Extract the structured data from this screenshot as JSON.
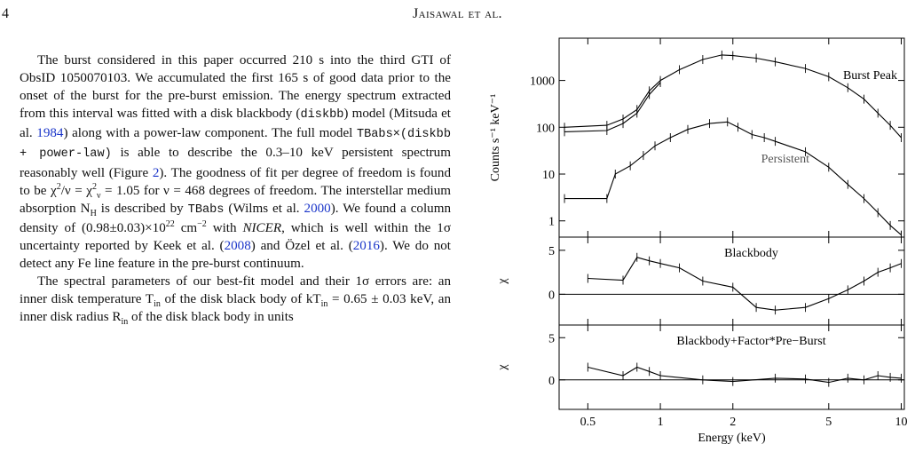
{
  "header": {
    "page_number": "4",
    "running_head": "Jaisawal et al."
  },
  "body": {
    "p1": [
      "The burst considered in this paper occurred 210 s into the third GTI of ObsID 1050070103. We accumulated the first 165 s of good data prior to the onset of the burst for the pre-burst emission. The energy spectrum extracted from this interval was fitted with a disk blackbody (",
      "diskbb",
      ") model (Mitsuda et al. ",
      "1984",
      ") along with a power-law component. The full model ",
      "TBabs×(diskbb + power-law)",
      " is able to describe the 0.3–10 keV persistent spectrum reasonably well (Figure ",
      "2",
      "). The goodness of fit per degree of freedom is found to be χ",
      "2",
      "/ν = χ",
      "2",
      "ν",
      " = 1.05 for ν = 468 degrees of freedom. The interstellar medium absorption N",
      "H",
      " is described by ",
      "TBabs",
      " (Wilms et al. ",
      "2000",
      "). We found a column density of (0.98±0.03)×10",
      "22",
      " cm",
      "−2",
      " with ",
      "NICER",
      ", which is well within the 1σ uncertainty reported by Keek et al. (",
      "2008",
      ") and Özel et al. (",
      "2016",
      "). We do not detect any Fe line feature in the pre-burst continuum."
    ],
    "p2": [
      "The spectral parameters of our best-fit model and their 1σ errors are: an inner disk temperature T",
      "in",
      " of the disk black body of kT",
      "in",
      " = 0.65 ± 0.03 keV, an inner disk radius R",
      "in",
      " of the disk black body in units"
    ]
  },
  "figure": {
    "chart_data": {
      "type": "line",
      "xlabel": "Energy (keV)",
      "x_scale": "log",
      "xlim": [
        0.38,
        10.3
      ],
      "x_ticks": [
        0.5,
        1,
        2,
        5,
        10
      ],
      "x_tick_labels": [
        "0.5",
        "1",
        "2",
        "5",
        "10"
      ],
      "panels": [
        {
          "ylabel": "Counts s⁻¹ keV⁻¹",
          "y_scale": "log",
          "ylim": [
            0.45,
            8000
          ],
          "y_ticks": [
            1,
            10,
            100,
            1000
          ],
          "y_tick_labels": [
            "1",
            "10",
            "100",
            "1000"
          ],
          "annotations": [
            "Burst Peak",
            "Persistent"
          ],
          "series": [
            {
              "points": [
                [
                  0.4,
                  100
                ],
                [
                  0.6,
                  110
                ],
                [
                  0.7,
                  150
                ],
                [
                  0.8,
                  240
                ],
                [
                  0.9,
                  600
                ],
                [
                  1.0,
                  1000
                ],
                [
                  1.2,
                  1700
                ],
                [
                  1.5,
                  2800
                ],
                [
                  1.8,
                  3500
                ],
                [
                  2.0,
                  3400
                ],
                [
                  2.5,
                  3000
                ],
                [
                  3.0,
                  2500
                ],
                [
                  4.0,
                  1800
                ],
                [
                  5.0,
                  1200
                ],
                [
                  6.0,
                  700
                ],
                [
                  7.0,
                  400
                ],
                [
                  8.0,
                  200
                ],
                [
                  9.0,
                  110
                ],
                [
                  10.0,
                  60
                ]
              ]
            },
            {
              "points": [
                [
                  0.4,
                  80
                ],
                [
                  0.6,
                  85
                ],
                [
                  0.7,
                  120
                ],
                [
                  0.8,
                  200
                ],
                [
                  0.9,
                  500
                ],
                [
                  1.0,
                  900
                ]
              ]
            },
            {
              "points": [
                [
                  0.4,
                  3
                ],
                [
                  0.6,
                  3
                ],
                [
                  0.65,
                  10
                ],
                [
                  0.75,
                  15
                ],
                [
                  0.85,
                  25
                ],
                [
                  0.95,
                  40
                ],
                [
                  1.1,
                  60
                ],
                [
                  1.3,
                  90
                ],
                [
                  1.6,
                  120
                ],
                [
                  1.9,
                  130
                ],
                [
                  2.1,
                  100
                ],
                [
                  2.4,
                  70
                ],
                [
                  2.7,
                  60
                ],
                [
                  3.0,
                  50
                ],
                [
                  4.0,
                  30
                ],
                [
                  5.0,
                  14
                ],
                [
                  6.0,
                  6
                ],
                [
                  7.0,
                  3
                ],
                [
                  8.0,
                  1.5
                ],
                [
                  9.0,
                  0.8
                ],
                [
                  10.0,
                  0.5
                ]
              ]
            }
          ]
        },
        {
          "ylabel": "χ",
          "ylim": [
            -3.5,
            6.5
          ],
          "y_ticks": [
            0,
            5
          ],
          "y_tick_labels": [
            "0",
            "5"
          ],
          "annotations": [
            "Blackbody"
          ],
          "series": [
            {
              "points": [
                [
                  0.5,
                  1.8
                ],
                [
                  0.7,
                  1.6
                ],
                [
                  0.8,
                  4.2
                ],
                [
                  0.9,
                  3.8
                ],
                [
                  1.0,
                  3.5
                ],
                [
                  1.2,
                  3.0
                ],
                [
                  1.5,
                  1.5
                ],
                [
                  2.0,
                  0.8
                ],
                [
                  2.5,
                  -1.5
                ],
                [
                  3.0,
                  -1.8
                ],
                [
                  4.0,
                  -1.5
                ],
                [
                  5.0,
                  -0.5
                ],
                [
                  6.0,
                  0.5
                ],
                [
                  7.0,
                  1.5
                ],
                [
                  8.0,
                  2.5
                ],
                [
                  9.0,
                  3.0
                ],
                [
                  10.0,
                  3.5
                ]
              ]
            }
          ]
        },
        {
          "ylabel": "χ",
          "ylim": [
            -3.5,
            6.5
          ],
          "y_ticks": [
            0,
            5
          ],
          "y_tick_labels": [
            "0",
            "5"
          ],
          "annotations": [
            "Blackbody+Factor*Pre−Burst"
          ],
          "series": [
            {
              "points": [
                [
                  0.5,
                  1.5
                ],
                [
                  0.7,
                  0.5
                ],
                [
                  0.8,
                  1.5
                ],
                [
                  0.9,
                  1.0
                ],
                [
                  1.0,
                  0.5
                ],
                [
                  1.5,
                  0.0
                ],
                [
                  2.0,
                  -0.2
                ],
                [
                  3.0,
                  0.2
                ],
                [
                  4.0,
                  0.1
                ],
                [
                  5.0,
                  -0.3
                ],
                [
                  6.0,
                  0.2
                ],
                [
                  7.0,
                  0.0
                ],
                [
                  8.0,
                  0.5
                ],
                [
                  9.0,
                  0.3
                ],
                [
                  10.0,
                  0.2
                ]
              ]
            }
          ]
        }
      ]
    }
  }
}
